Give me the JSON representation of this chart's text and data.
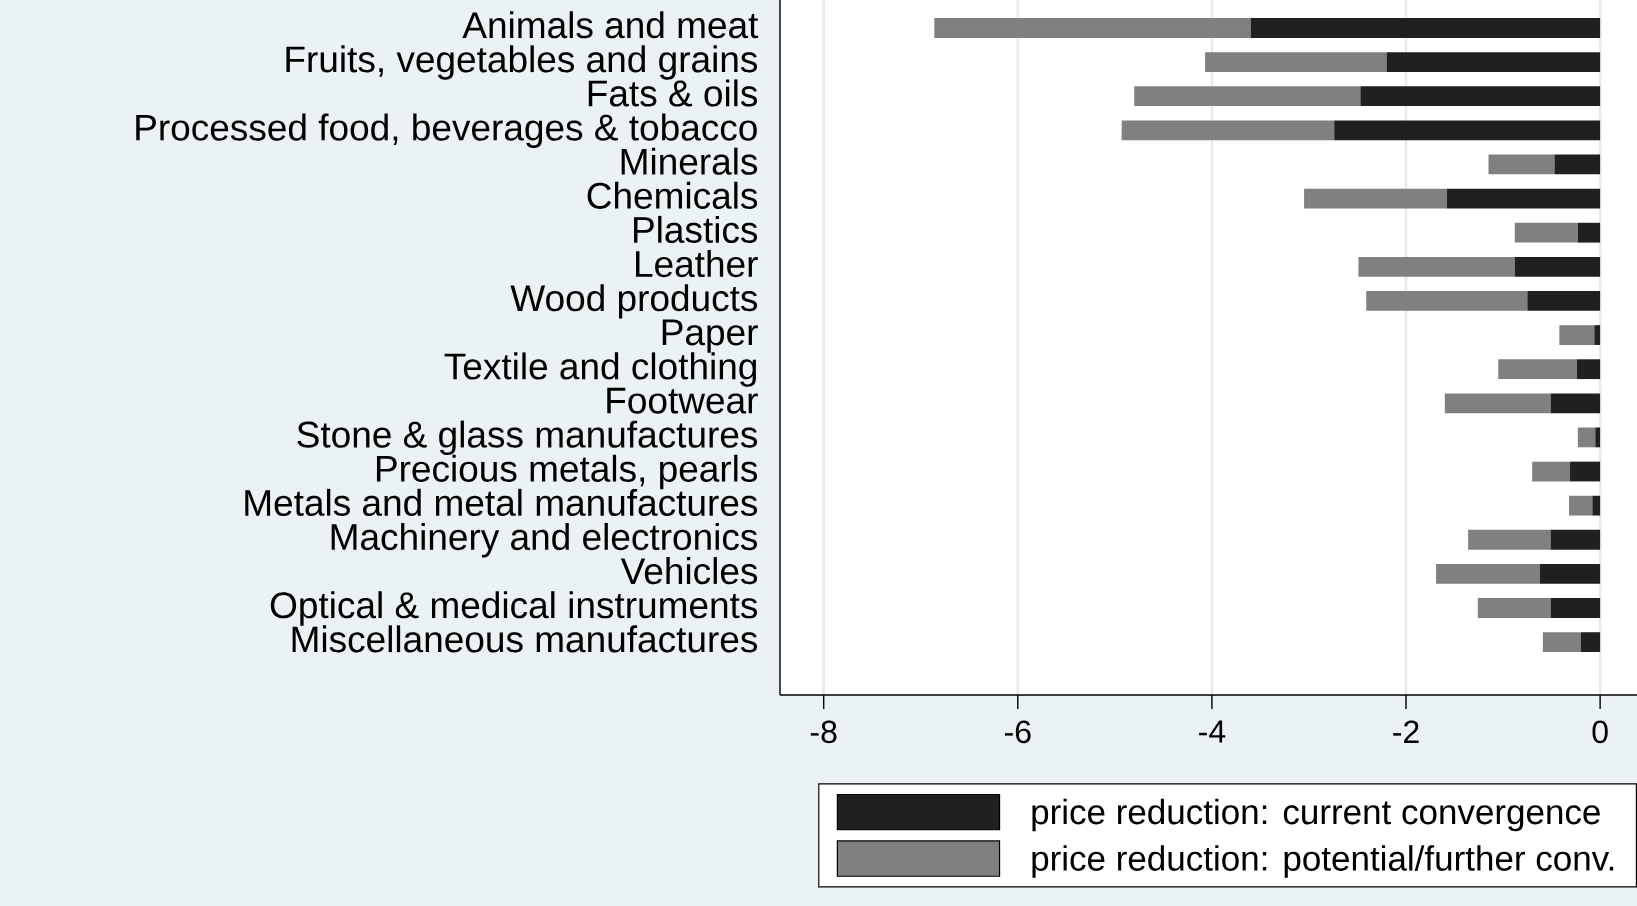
{
  "chart_data": {
    "type": "bar",
    "orientation": "horizontal",
    "stacked": true,
    "categories": [
      "Animals and meat",
      "Fruits, vegetables and grains",
      "Fats & oils",
      "Processed food, beverages & tobacco",
      "Minerals",
      "Chemicals",
      "Plastics",
      "Leather",
      "Wood products",
      "Paper",
      "Textile and clothing",
      "Footwear",
      "Stone & glass manufactures",
      "Precious metals, pearls",
      "Metals and metal manufactures",
      "Machinery and electronics",
      "Vehicles",
      "Optical & medical instruments",
      "Miscellaneous manufactures"
    ],
    "series": [
      {
        "name": "price reduction: current convergence",
        "color": "#202020",
        "values": [
          -3.6,
          -2.2,
          -2.47,
          -2.74,
          -0.47,
          -1.58,
          -0.23,
          -0.88,
          -0.75,
          -0.06,
          -0.24,
          -0.51,
          -0.05,
          -0.31,
          -0.08,
          -0.51,
          -0.62,
          -0.51,
          -0.2
        ]
      },
      {
        "name": "price reduction: potential/further conv.",
        "color": "#808080",
        "values": [
          -3.26,
          -1.87,
          -2.33,
          -2.19,
          -0.68,
          -1.47,
          -0.65,
          -1.61,
          -1.66,
          -0.36,
          -0.81,
          -1.09,
          -0.18,
          -0.39,
          -0.24,
          -0.85,
          -1.07,
          -0.75,
          -0.39
        ]
      }
    ],
    "xlim": [
      -8.45,
      0.38
    ],
    "xticks": [
      -8,
      -6,
      -4,
      -2,
      0
    ],
    "grid": "x",
    "legend": "bottom"
  }
}
